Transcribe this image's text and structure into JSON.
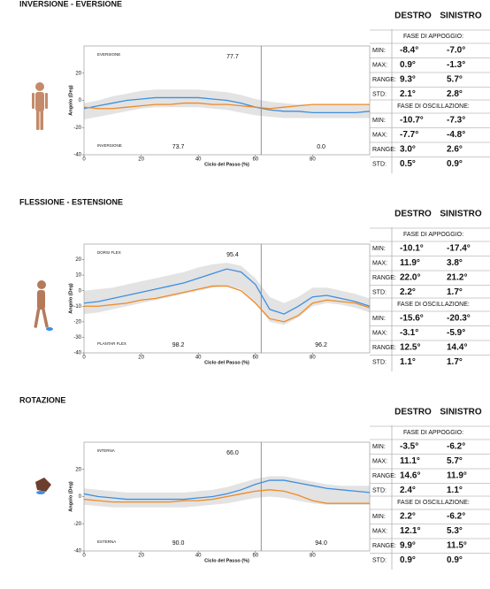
{
  "chart_data": [
    {
      "type": "line",
      "title": "INVERSIONE - EVERSIONE",
      "xlabel": "Ciclo del Passo (%)",
      "ylabel": "Angolo (Deg)",
      "xlim": [
        0,
        100
      ],
      "xticks": [
        0,
        20,
        40,
        60,
        80
      ],
      "ylim": [
        -40,
        40
      ],
      "yticks": [
        -40,
        -20,
        0,
        20
      ],
      "marker": 62,
      "x": [
        0,
        5,
        10,
        15,
        20,
        25,
        30,
        35,
        40,
        45,
        50,
        55,
        60,
        65,
        70,
        75,
        80,
        85,
        90,
        95,
        100
      ],
      "band": {
        "color": "#e3e3e3",
        "lower": [
          -14,
          -12,
          -10,
          -8,
          -6,
          -5,
          -5,
          -5,
          -5,
          -6,
          -7,
          -9,
          -11,
          -12,
          -13,
          -13,
          -13,
          -13,
          -13,
          -13,
          -13
        ],
        "upper": [
          -2,
          0,
          3,
          5,
          7,
          8,
          8,
          8,
          8,
          7,
          6,
          4,
          1,
          -1,
          -2,
          -3,
          -3,
          -3,
          -3,
          -3,
          -3
        ]
      },
      "series": [
        {
          "color": "#3d8fe0",
          "values": [
            -6,
            -4,
            -2,
            0,
            1,
            2,
            2,
            2,
            2,
            1,
            0,
            -2,
            -5,
            -7,
            -8,
            -8,
            -9,
            -9,
            -9,
            -9,
            -8
          ]
        },
        {
          "color": "#f08a24",
          "values": [
            -5,
            -6,
            -6,
            -5,
            -4,
            -3,
            -3,
            -2,
            -2,
            -3,
            -3,
            -4,
            -5,
            -6,
            -5,
            -4,
            -3,
            -3,
            -3,
            -3,
            -3
          ]
        }
      ],
      "annotations": {
        "upper_label": "EVERSIONE",
        "upper_value": "77.7",
        "lower_label": "INVERSIONE",
        "lower_value_stance": "73.7",
        "lower_value_swing": "0.0"
      }
    },
    {
      "type": "line",
      "title": "FLESSIONE - ESTENSIONE",
      "xlabel": "Ciclo del Passo (%)",
      "ylabel": "Angolo (Deg)",
      "xlim": [
        0,
        100
      ],
      "xticks": [
        0,
        20,
        40,
        60,
        80
      ],
      "ylim": [
        -40,
        30
      ],
      "yticks": [
        -40,
        -30,
        -20,
        -10,
        0,
        10,
        20
      ],
      "marker": 62,
      "x": [
        0,
        5,
        10,
        15,
        20,
        25,
        30,
        35,
        40,
        45,
        50,
        55,
        60,
        65,
        70,
        75,
        80,
        85,
        90,
        95,
        100
      ],
      "band": {
        "color": "#e3e3e3",
        "lower": [
          -15,
          -14,
          -12,
          -10,
          -8,
          -6,
          -4,
          -2,
          0,
          2,
          3,
          1,
          -8,
          -20,
          -22,
          -17,
          -10,
          -8,
          -9,
          -11,
          -14
        ],
        "upper": [
          0,
          1,
          2,
          4,
          6,
          8,
          10,
          12,
          15,
          17,
          18,
          16,
          8,
          -4,
          -8,
          -4,
          2,
          2,
          0,
          -2,
          -5
        ]
      },
      "series": [
        {
          "color": "#3d8fe0",
          "values": [
            -8,
            -7,
            -5,
            -3,
            -1,
            1,
            3,
            5,
            8,
            11,
            14,
            12,
            4,
            -12,
            -15,
            -10,
            -4,
            -3,
            -5,
            -7,
            -10
          ]
        },
        {
          "color": "#f08a24",
          "values": [
            -10,
            -10,
            -9,
            -8,
            -6,
            -5,
            -3,
            -1,
            1,
            3,
            3,
            0,
            -8,
            -18,
            -20,
            -16,
            -8,
            -6,
            -7,
            -8,
            -11
          ]
        }
      ],
      "annotations": {
        "upper_label": "DORSI FLEX",
        "upper_value": "95.4",
        "lower_label": "PLANTAR FLEX",
        "lower_value_stance": "98.2",
        "lower_value_swing": "96.2"
      }
    },
    {
      "type": "line",
      "title": "ROTAZIONE",
      "xlabel": "Ciclo del Passo (%)",
      "ylabel": "Angolo (Deg)",
      "xlim": [
        0,
        100
      ],
      "xticks": [
        0,
        20,
        40,
        60,
        80
      ],
      "ylim": [
        -40,
        40
      ],
      "yticks": [
        -40,
        -20,
        0,
        20
      ],
      "marker": 62,
      "x": [
        0,
        5,
        10,
        15,
        20,
        25,
        30,
        35,
        40,
        45,
        50,
        55,
        60,
        65,
        70,
        75,
        80,
        85,
        90,
        95,
        100
      ],
      "band": {
        "color": "#e3e3e3",
        "lower": [
          -6,
          -7,
          -8,
          -8,
          -8,
          -8,
          -8,
          -8,
          -7,
          -6,
          -5,
          -3,
          -1,
          0,
          -1,
          -3,
          -5,
          -6,
          -6,
          -6,
          -6
        ],
        "upper": [
          6,
          5,
          4,
          3,
          3,
          3,
          3,
          3,
          4,
          5,
          7,
          10,
          13,
          15,
          15,
          13,
          11,
          9,
          8,
          8,
          8
        ]
      },
      "series": [
        {
          "color": "#3d8fe0",
          "values": [
            2,
            0,
            -1,
            -2,
            -2,
            -2,
            -2,
            -2,
            -1,
            0,
            2,
            5,
            9,
            12,
            12,
            10,
            8,
            6,
            5,
            4,
            3
          ]
        },
        {
          "color": "#f08a24",
          "values": [
            -2,
            -3,
            -4,
            -4,
            -4,
            -4,
            -4,
            -3,
            -3,
            -2,
            0,
            2,
            4,
            5,
            4,
            1,
            -3,
            -5,
            -5,
            -5,
            -5
          ]
        }
      ],
      "annotations": {
        "upper_label": "INTERNA",
        "upper_value": "66.0",
        "lower_label": "ESTERNA",
        "lower_value_stance": "90.0",
        "lower_value_swing": "94.0"
      }
    }
  ],
  "tables": [
    {
      "headers": [
        "DESTRO",
        "SINISTRO"
      ],
      "stance_title": "FASE DI APPOGGIO:",
      "swing_title": "FASE DI OSCILLAZIONE:",
      "stance_rows": [
        [
          "MIN:",
          "-8.4°",
          "-7.0°"
        ],
        [
          "MAX:",
          "0.9°",
          "-1.3°"
        ],
        [
          "RANGE:",
          "9.3°",
          "5.7°"
        ],
        [
          "STD:",
          "2.1°",
          "2.8°"
        ]
      ],
      "swing_rows": [
        [
          "MIN:",
          "-10.7°",
          "-7.3°"
        ],
        [
          "MAX:",
          "-7.7°",
          "-4.8°"
        ],
        [
          "RANGE:",
          "3.0°",
          "2.6°"
        ],
        [
          "STD:",
          "0.5°",
          "0.9°"
        ]
      ]
    },
    {
      "headers": [
        "DESTRO",
        "SINISTRO"
      ],
      "stance_title": "FASE DI APPOGGIO:",
      "swing_title": "FASE DI OSCILLAZIONE:",
      "stance_rows": [
        [
          "MIN:",
          "-10.1°",
          "-17.4°"
        ],
        [
          "MAX:",
          "11.9°",
          "3.8°"
        ],
        [
          "RANGE:",
          "22.0°",
          "21.2°"
        ],
        [
          "STD:",
          "2.2°",
          "1.7°"
        ]
      ],
      "swing_rows": [
        [
          "MIN:",
          "-15.6°",
          "-20.3°"
        ],
        [
          "MAX:",
          "-3.1°",
          "-5.9°"
        ],
        [
          "RANGE:",
          "12.5°",
          "14.4°"
        ],
        [
          "STD:",
          "1.1°",
          "1.7°"
        ]
      ]
    },
    {
      "headers": [
        "DESTRO",
        "SINISTRO"
      ],
      "stance_title": "FASE DI APPOGGIO:",
      "swing_title": "FASE DI OSCILLAZIONE:",
      "stance_rows": [
        [
          "MIN:",
          "-3.5°",
          "-6.2°"
        ],
        [
          "MAX:",
          "11.1°",
          "5.7°"
        ],
        [
          "RANGE:",
          "14.6°",
          "11.9°"
        ],
        [
          "STD:",
          "2.4°",
          "1.1°"
        ]
      ],
      "swing_rows": [
        [
          "MIN:",
          "2.2°",
          "-6.2°"
        ],
        [
          "MAX:",
          "12.1°",
          "5.3°"
        ],
        [
          "RANGE:",
          "9.9°",
          "11.5°"
        ],
        [
          "STD:",
          "0.9°",
          "0.9°"
        ]
      ]
    }
  ]
}
